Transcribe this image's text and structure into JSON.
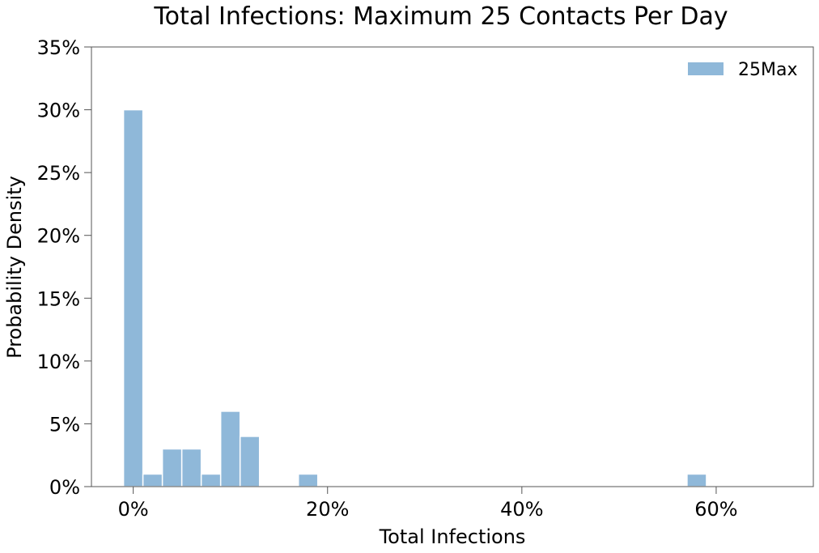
{
  "chart_data": {
    "type": "bar",
    "title": "Total Infections: Maximum 25 Contacts Per Day",
    "xlabel": "Total Infections",
    "ylabel": "Probability Density",
    "xlim": [
      -4.3,
      70
    ],
    "ylim": [
      0,
      35
    ],
    "xticks": [
      {
        "value": 0,
        "label": "0%"
      },
      {
        "value": 20,
        "label": "20%"
      },
      {
        "value": 40,
        "label": "40%"
      },
      {
        "value": 60,
        "label": "60%"
      }
    ],
    "yticks": [
      {
        "value": 0,
        "label": "0%"
      },
      {
        "value": 5,
        "label": "5%"
      },
      {
        "value": 10,
        "label": "10%"
      },
      {
        "value": 15,
        "label": "15%"
      },
      {
        "value": 20,
        "label": "20%"
      },
      {
        "value": 25,
        "label": "25%"
      },
      {
        "value": 30,
        "label": "30%"
      },
      {
        "value": 35,
        "label": "35%"
      }
    ],
    "grid": false,
    "legend": {
      "position": "top-right"
    },
    "series": [
      {
        "name": "25Max",
        "color": "#8fb8d9",
        "bins": [
          {
            "x0": -1,
            "x1": 1,
            "value": 30
          },
          {
            "x0": 1,
            "x1": 3,
            "value": 1
          },
          {
            "x0": 3,
            "x1": 5,
            "value": 3
          },
          {
            "x0": 5,
            "x1": 7,
            "value": 3
          },
          {
            "x0": 7,
            "x1": 9,
            "value": 1
          },
          {
            "x0": 9,
            "x1": 11,
            "value": 6
          },
          {
            "x0": 11,
            "x1": 13,
            "value": 4
          },
          {
            "x0": 17,
            "x1": 19,
            "value": 1
          },
          {
            "x0": 57,
            "x1": 59,
            "value": 1
          }
        ]
      }
    ]
  }
}
